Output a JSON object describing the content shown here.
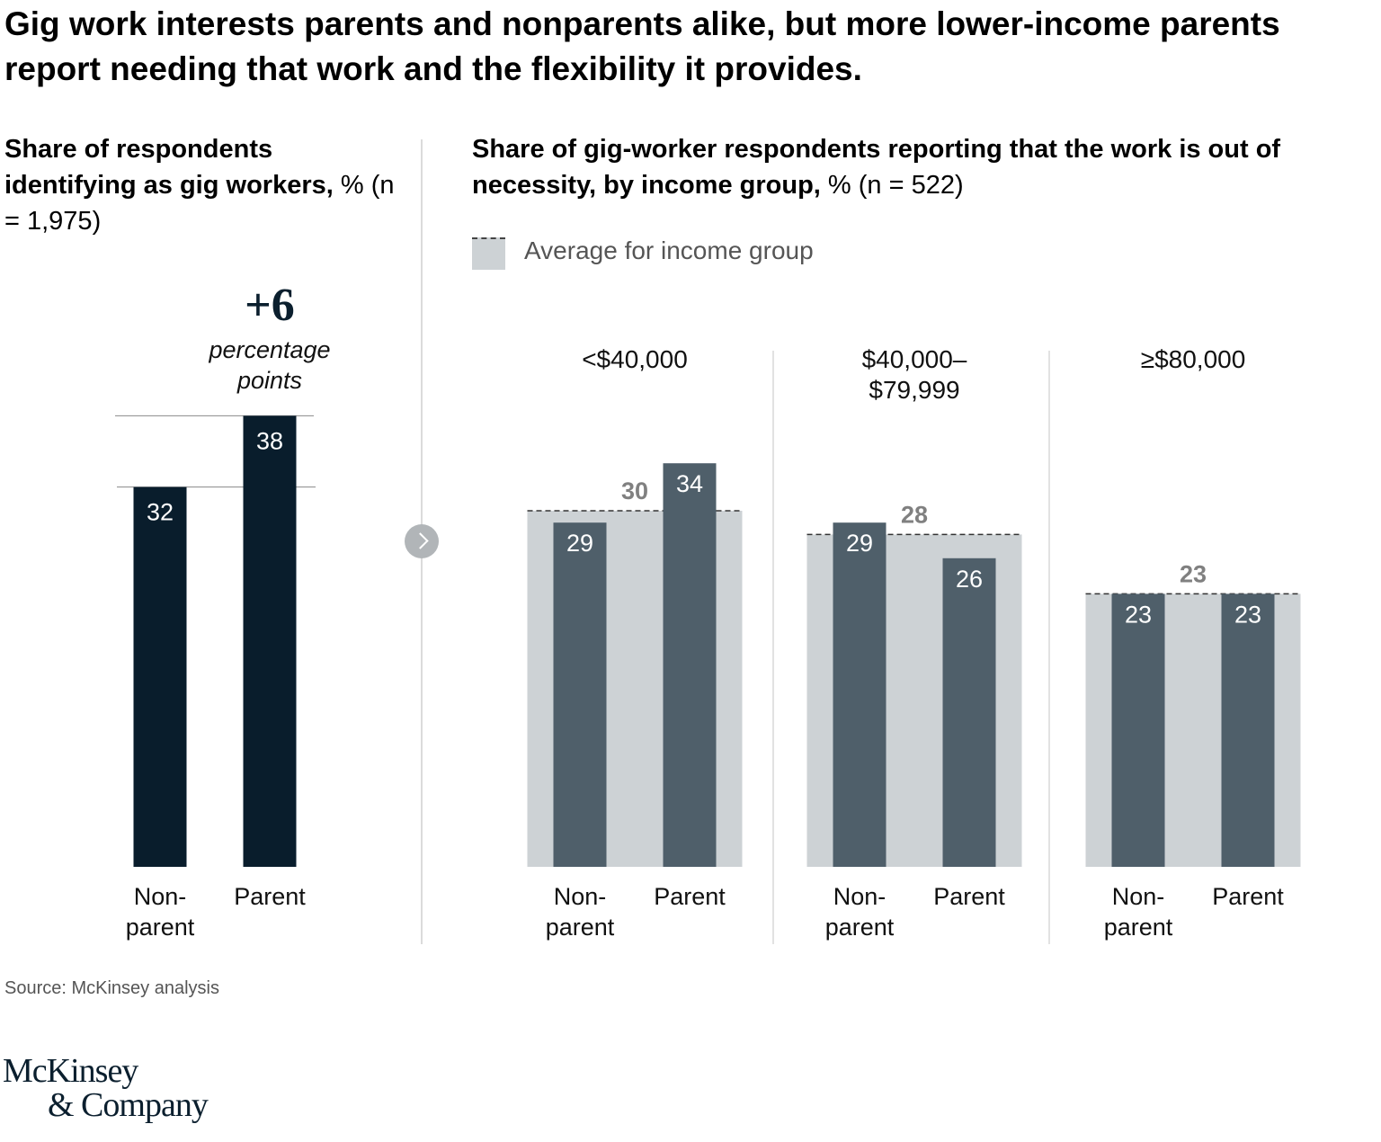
{
  "title": "Gig work interests parents and nonparents alike, but more lower-income parents report needing that work and the flexibility it provides.",
  "left_panel": {
    "heading_bold": "Share of respondents identifying as gig workers,",
    "heading_unit": "% (n = 1,975)",
    "delta_value": "+6",
    "delta_label_1": "percentage",
    "delta_label_2": "points"
  },
  "right_panel": {
    "heading_bold": "Share of gig-worker respondents reporting that the work is out of necessity, by income group,",
    "heading_unit": "% (n = 522)",
    "legend_label": "Average for income group"
  },
  "source": "Source: McKinsey analysis",
  "logo": {
    "line1": "McKinsey",
    "line2": "& Company"
  },
  "colors": {
    "dark_bar": "#091d2c",
    "slate_bar": "#4f5f6a",
    "avg_fill": "#cdd2d5",
    "avg_label": "#808080"
  },
  "chart_data": [
    {
      "type": "bar",
      "title": "Share of respondents identifying as gig workers, % (n = 1,975)",
      "categories": [
        "Non-parent",
        "Parent"
      ],
      "values": [
        32,
        38
      ],
      "annotation": "+6 percentage points"
    },
    {
      "type": "bar",
      "title": "Share of gig-worker respondents reporting that the work is out of necessity, by income group, % (n = 522)",
      "groups": [
        {
          "label": "<$40,000",
          "average": 30,
          "categories": [
            "Non-parent",
            "Parent"
          ],
          "values": [
            29,
            34
          ]
        },
        {
          "label": "$40,000–$79,999",
          "average": 28,
          "categories": [
            "Non-parent",
            "Parent"
          ],
          "values": [
            29,
            26
          ]
        },
        {
          "label": "≥$80,000",
          "average": 23,
          "categories": [
            "Non-parent",
            "Parent"
          ],
          "values": [
            23,
            23
          ]
        }
      ],
      "legend": [
        "Average for income group"
      ]
    }
  ]
}
